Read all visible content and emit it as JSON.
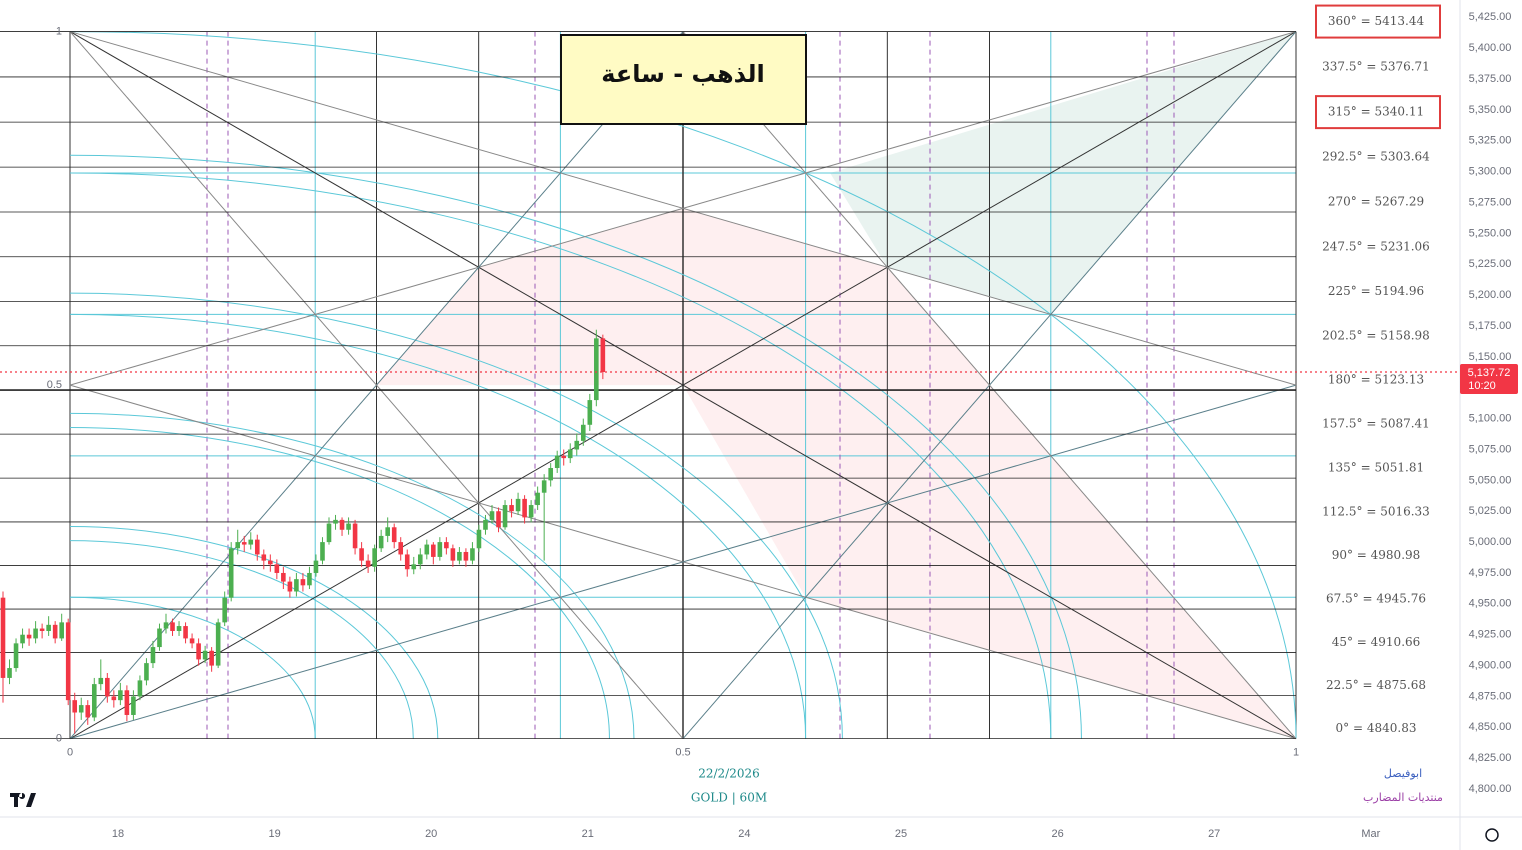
{
  "chart_data": {
    "type": "candlestick",
    "title": "الذهب - ساعة",
    "date": "22/2/2026",
    "symbol": "GOLD | 60M",
    "author": "ابوفيصل",
    "forum": "منتديات المضارب",
    "up_color": "#4caf50",
    "down_color": "#f23645",
    "ylim": [
      4779,
      5439
    ],
    "yticks": [
      {
        "value": 4800,
        "label": "4,800.00"
      },
      {
        "value": 4825,
        "label": "4,825.00"
      },
      {
        "value": 4850,
        "label": "4,850.00"
      },
      {
        "value": 4875,
        "label": "4,875.00"
      },
      {
        "value": 4900,
        "label": "4,900.00"
      },
      {
        "value": 4925,
        "label": "4,925.00"
      },
      {
        "value": 4950,
        "label": "4,950.00"
      },
      {
        "value": 4975,
        "label": "4,975.00"
      },
      {
        "value": 5000,
        "label": "5,000.00"
      },
      {
        "value": 5025,
        "label": "5,025.00"
      },
      {
        "value": 5050,
        "label": "5,050.00"
      },
      {
        "value": 5075,
        "label": "5,075.00"
      },
      {
        "value": 5100,
        "label": "5,100.00"
      },
      {
        "value": 5125,
        "label": "5,125.00"
      },
      {
        "value": 5150,
        "label": "5,150.00"
      },
      {
        "value": 5175,
        "label": "5,175.00"
      },
      {
        "value": 5200,
        "label": "5,200.00"
      },
      {
        "value": 5225,
        "label": "5,225.00"
      },
      {
        "value": 5250,
        "label": "5,250.00"
      },
      {
        "value": 5275,
        "label": "5,275.00"
      },
      {
        "value": 5300,
        "label": "5,300.00"
      },
      {
        "value": 5325,
        "label": "5,325.00"
      },
      {
        "value": 5350,
        "label": "5,350.00"
      },
      {
        "value": 5375,
        "label": "5,375.00"
      },
      {
        "value": 5400,
        "label": "5,400.00"
      },
      {
        "value": 5425,
        "label": "5,425.00"
      }
    ],
    "time_labels": [
      "18",
      "19",
      "20",
      "21",
      "24",
      "25",
      "26",
      "27",
      "Mar"
    ],
    "last_price": {
      "value": 5137.72,
      "label": "5,137.72"
    },
    "countdown": "10:20",
    "gann_box": {
      "box_ticks": [
        0,
        0.5,
        1
      ],
      "highlight_color": "#e03c3c",
      "levels": [
        {
          "value": 4840.83,
          "label": "0° = 4840.83"
        },
        {
          "value": 4875.68,
          "label": "22.5° = 4875.68"
        },
        {
          "value": 4910.66,
          "label": "45° = 4910.66"
        },
        {
          "value": 4945.76,
          "label": "67.5° = 4945.76"
        },
        {
          "value": 4980.98,
          "label": "90° = 4980.98"
        },
        {
          "value": 5016.33,
          "label": "112.5° = 5016.33"
        },
        {
          "value": 5051.81,
          "label": "135° = 5051.81"
        },
        {
          "value": 5087.41,
          "label": "157.5° = 5087.41"
        },
        {
          "value": 5123.13,
          "label": "180° = 5123.13"
        },
        {
          "value": 5158.98,
          "label": "202.5° = 5158.98"
        },
        {
          "value": 5194.96,
          "label": "225° = 5194.96"
        },
        {
          "value": 5231.06,
          "label": "247.5° = 5231.06"
        },
        {
          "value": 5267.29,
          "label": "270° = 5267.29"
        },
        {
          "value": 5303.64,
          "label": "292.5° = 5303.64"
        },
        {
          "value": 5340.11,
          "label": "315° = 5340.11",
          "highlight": true
        },
        {
          "value": 5376.71,
          "label": "337.5° = 5376.71"
        },
        {
          "value": 5413.44,
          "label": "360° = 5413.44",
          "highlight": true
        }
      ]
    },
    "open": [
      4955,
      4890,
      4898,
      4918,
      4925,
      4922,
      4930,
      4928,
      4933,
      4922,
      4935,
      4872,
      4862,
      4868,
      4858,
      4885,
      4890,
      4875,
      4872,
      4880,
      4860,
      4875,
      4888,
      4902,
      4915,
      4930,
      4935,
      4928,
      4932,
      4922,
      4918,
      4905,
      4912,
      4900,
      4935,
      4955,
      4995,
      5000,
      4998,
      5002,
      4990,
      4985,
      4982,
      4975,
      4968,
      4960,
      4970,
      4965,
      4975,
      4985,
      5000,
      5015,
      5018,
      5010,
      5015,
      4995,
      4985,
      4980,
      4995,
      5005,
      5012,
      5000,
      4990,
      4978,
      4982,
      4990,
      4998,
      4988,
      5000,
      4995,
      4985,
      4992,
      4985,
      4995,
      5010,
      5018,
      5025,
      5012,
      5030,
      5025,
      5035,
      5020,
      5030,
      5040,
      5050,
      5060,
      5070,
      5068,
      5075,
      5082,
      5095,
      5115,
      5165
    ],
    "high": [
      4960,
      4905,
      4922,
      4930,
      4930,
      4936,
      4934,
      4940,
      4936,
      4942,
      4938,
      4878,
      4874,
      4872,
      4890,
      4905,
      4894,
      4880,
      4886,
      4884,
      4880,
      4892,
      4906,
      4920,
      4934,
      4942,
      4938,
      4936,
      4935,
      4926,
      4922,
      4916,
      4915,
      4938,
      4960,
      5000,
      5010,
      5005,
      5008,
      5006,
      4994,
      4990,
      4986,
      4980,
      4972,
      4975,
      4975,
      4980,
      4990,
      5004,
      5020,
      5022,
      5020,
      5020,
      5018,
      5000,
      4990,
      4998,
      5010,
      5020,
      5015,
      5004,
      4994,
      4988,
      4995,
      5002,
      5000,
      5004,
      5004,
      4998,
      4996,
      4995,
      5000,
      5014,
      5022,
      5030,
      5028,
      5034,
      5035,
      5040,
      5038,
      5034,
      5045,
      5055,
      5064,
      5074,
      5075,
      5080,
      5088,
      5100,
      5120,
      5172,
      5168
    ],
    "low": [
      4870,
      4885,
      4895,
      4914,
      4916,
      4918,
      4922,
      4924,
      4918,
      4920,
      4868,
      4845,
      4856,
      4852,
      4855,
      4880,
      4870,
      4866,
      4868,
      4855,
      4856,
      4872,
      4884,
      4898,
      4912,
      4926,
      4924,
      4924,
      4918,
      4914,
      4900,
      4902,
      4895,
      4898,
      4932,
      4952,
      4990,
      4992,
      4994,
      4985,
      4978,
      4976,
      4970,
      4962,
      4955,
      4956,
      4960,
      4962,
      4972,
      4982,
      4998,
      5010,
      5005,
      5006,
      4990,
      4980,
      4975,
      4976,
      4992,
      5000,
      4995,
      4985,
      4972,
      4974,
      4978,
      4986,
      4982,
      4985,
      4990,
      4980,
      4982,
      4980,
      4982,
      4992,
      5006,
      5015,
      5008,
      5010,
      5020,
      5022,
      5015,
      5016,
      5026,
      4985,
      5045,
      5056,
      5062,
      5064,
      5070,
      5078,
      5090,
      5110,
      5132
    ],
    "close": [
      4890,
      4898,
      4918,
      4925,
      4922,
      4930,
      4928,
      4933,
      4922,
      4935,
      4872,
      4862,
      4868,
      4858,
      4885,
      4890,
      4875,
      4872,
      4880,
      4860,
      4875,
      4888,
      4902,
      4915,
      4930,
      4935,
      4928,
      4932,
      4922,
      4918,
      4905,
      4912,
      4900,
      4935,
      4955,
      4995,
      5000,
      4998,
      5002,
      4990,
      4985,
      4982,
      4975,
      4968,
      4960,
      4970,
      4965,
      4975,
      4985,
      5000,
      5015,
      5018,
      5010,
      5015,
      4995,
      4985,
      4980,
      4995,
      5005,
      5012,
      5000,
      4990,
      4978,
      4982,
      4990,
      4998,
      4988,
      5000,
      4995,
      4985,
      4992,
      4985,
      4995,
      5010,
      5018,
      5025,
      5012,
      5030,
      5025,
      5035,
      5020,
      5030,
      5040,
      5050,
      5060,
      5070,
      5068,
      5075,
      5082,
      5095,
      5115,
      5165,
      5137.72
    ]
  }
}
